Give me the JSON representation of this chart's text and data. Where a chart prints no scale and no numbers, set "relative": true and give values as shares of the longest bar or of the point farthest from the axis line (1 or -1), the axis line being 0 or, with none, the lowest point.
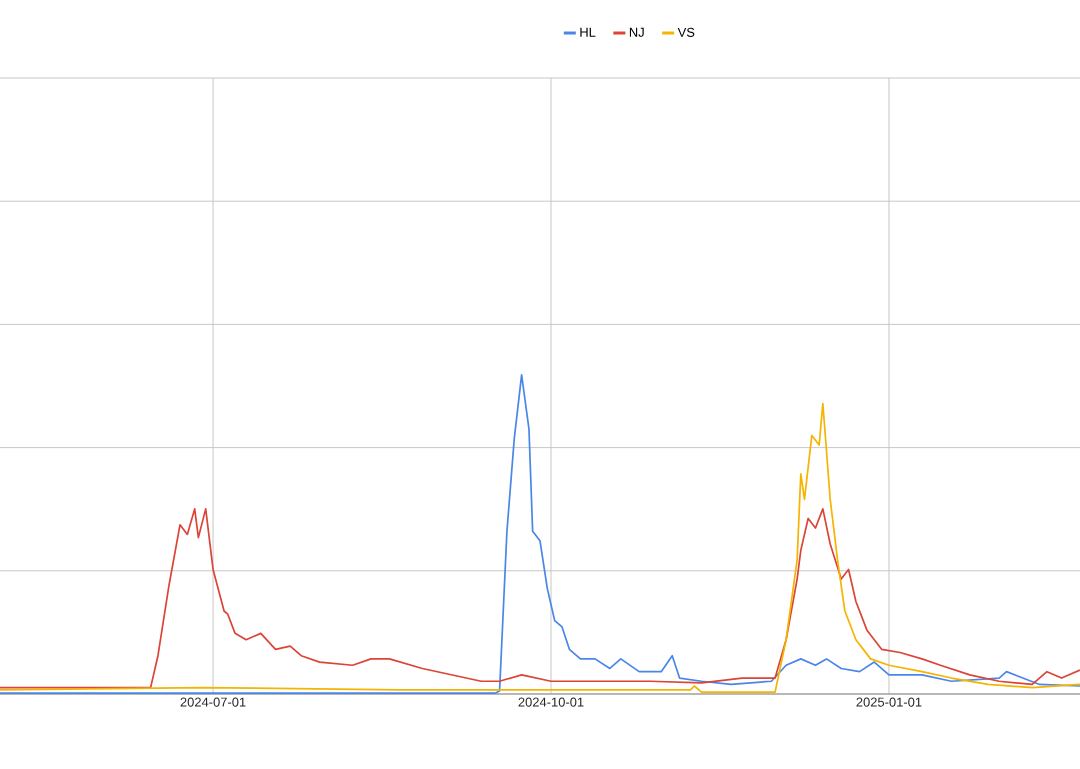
{
  "chart_data": {
    "type": "line",
    "relative": true,
    "grid": true,
    "legend": "top",
    "xlim": [
      "2024-05-04",
      "2025-02-22"
    ],
    "xticks": [
      "2024-07-01",
      "2024-10-01",
      "2025-01-01"
    ],
    "series": [
      {
        "name": "HL",
        "color": "#4a86e8",
        "x": [
          "2024-05-04",
          "2024-09-16",
          "2024-09-17",
          "2024-09-19",
          "2024-09-21",
          "2024-09-23",
          "2024-09-25",
          "2024-09-26",
          "2024-09-28",
          "2024-09-30",
          "2024-10-02",
          "2024-10-04",
          "2024-10-06",
          "2024-10-09",
          "2024-10-13",
          "2024-10-17",
          "2024-10-20",
          "2024-10-25",
          "2024-10-31",
          "2024-11-03",
          "2024-11-05",
          "2024-11-11",
          "2024-11-19",
          "2024-11-30",
          "2024-12-04",
          "2024-12-08",
          "2024-12-12",
          "2024-12-15",
          "2024-12-19",
          "2024-12-24",
          "2024-12-28",
          "2025-01-01",
          "2025-01-10",
          "2025-01-18",
          "2025-01-31",
          "2025-02-02",
          "2025-02-11",
          "2025-02-22"
        ],
        "values": [
          0.003,
          0.003,
          0.01,
          0.51,
          0.8,
          1.0,
          0.83,
          0.51,
          0.48,
          0.33,
          0.23,
          0.21,
          0.14,
          0.11,
          0.11,
          0.08,
          0.11,
          0.07,
          0.07,
          0.12,
          0.05,
          0.04,
          0.03,
          0.04,
          0.09,
          0.11,
          0.09,
          0.11,
          0.08,
          0.07,
          0.1,
          0.06,
          0.06,
          0.04,
          0.05,
          0.07,
          0.03,
          0.025
        ]
      },
      {
        "name": "NJ",
        "color": "#db4437",
        "x": [
          "2024-05-04",
          "2024-06-14",
          "2024-06-16",
          "2024-06-19",
          "2024-06-22",
          "2024-06-24",
          "2024-06-26",
          "2024-06-27",
          "2024-06-29",
          "2024-07-01",
          "2024-07-04",
          "2024-07-05",
          "2024-07-07",
          "2024-07-10",
          "2024-07-14",
          "2024-07-18",
          "2024-07-22",
          "2024-07-25",
          "2024-07-30",
          "2024-08-08",
          "2024-08-13",
          "2024-08-18",
          "2024-08-27",
          "2024-09-04",
          "2024-09-12",
          "2024-09-17",
          "2024-09-23",
          "2024-10-01",
          "2024-10-15",
          "2024-10-28",
          "2024-11-11",
          "2024-11-22",
          "2024-12-01",
          "2024-12-04",
          "2024-12-07",
          "2024-12-08",
          "2024-12-10",
          "2024-12-12",
          "2024-12-14",
          "2024-12-16",
          "2024-12-19",
          "2024-12-21",
          "2024-12-23",
          "2024-12-26",
          "2024-12-30",
          "2025-01-04",
          "2025-01-10",
          "2025-01-15",
          "2025-01-23",
          "2025-01-31",
          "2025-02-09",
          "2025-02-13",
          "2025-02-17",
          "2025-02-22"
        ],
        "values": [
          0.02,
          0.02,
          0.12,
          0.34,
          0.53,
          0.5,
          0.58,
          0.49,
          0.58,
          0.39,
          0.26,
          0.25,
          0.19,
          0.17,
          0.19,
          0.14,
          0.15,
          0.12,
          0.1,
          0.09,
          0.11,
          0.11,
          0.08,
          0.06,
          0.04,
          0.04,
          0.06,
          0.04,
          0.04,
          0.04,
          0.035,
          0.05,
          0.05,
          0.17,
          0.36,
          0.45,
          0.55,
          0.52,
          0.58,
          0.47,
          0.36,
          0.39,
          0.29,
          0.2,
          0.14,
          0.13,
          0.11,
          0.09,
          0.06,
          0.04,
          0.03,
          0.07,
          0.05,
          0.075
        ]
      },
      {
        "name": "VS",
        "color": "#f4b400",
        "x": [
          "2024-05-04",
          "2024-06-28",
          "2024-08-21",
          "2024-11-08",
          "2024-11-09",
          "2024-11-11",
          "2024-12-01",
          "2024-12-04",
          "2024-12-07",
          "2024-12-08",
          "2024-12-09",
          "2024-12-11",
          "2024-12-13",
          "2024-12-14",
          "2024-12-16",
          "2024-12-18",
          "2024-12-20",
          "2024-12-23",
          "2024-12-27",
          "2025-01-01",
          "2025-01-10",
          "2025-01-18",
          "2025-01-28",
          "2025-02-09",
          "2025-02-22"
        ],
        "values": [
          0.013,
          0.02,
          0.013,
          0.013,
          0.025,
          0.006,
          0.006,
          0.17,
          0.42,
          0.69,
          0.61,
          0.81,
          0.78,
          0.91,
          0.61,
          0.42,
          0.26,
          0.17,
          0.11,
          0.09,
          0.07,
          0.05,
          0.03,
          0.02,
          0.03
        ]
      }
    ]
  }
}
